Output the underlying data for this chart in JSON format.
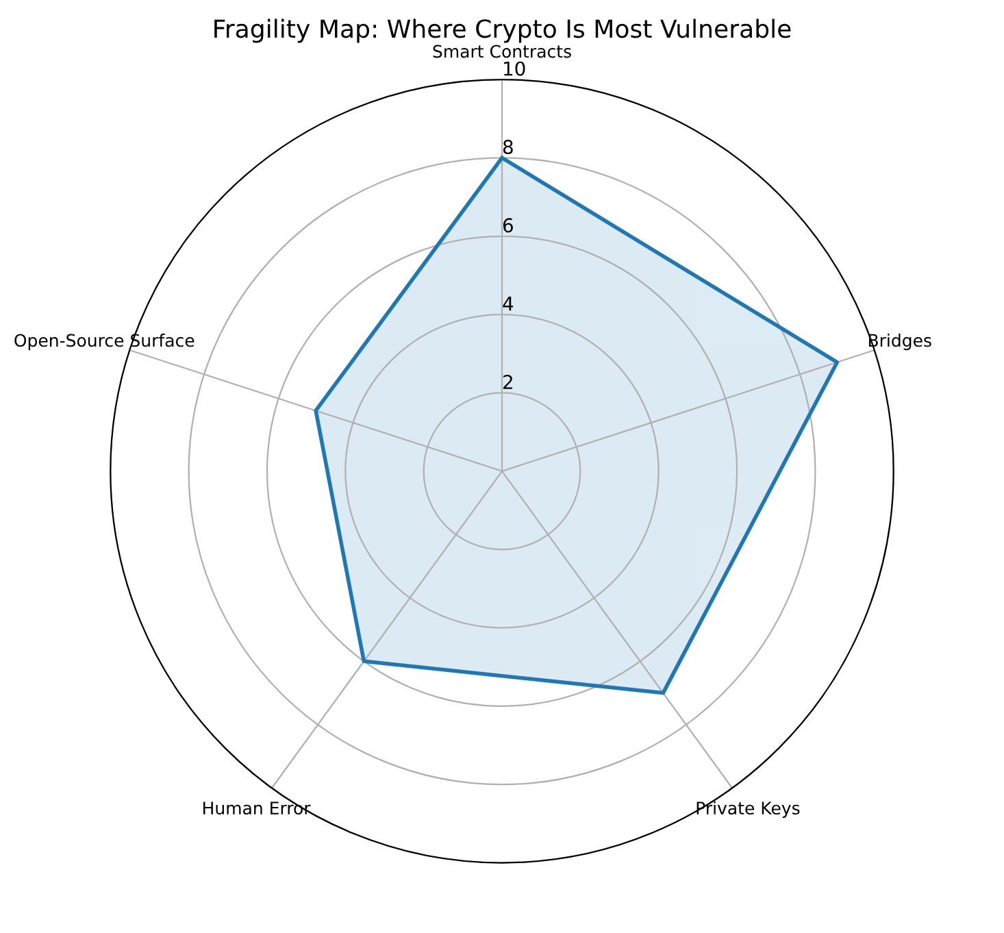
{
  "chart_data": {
    "type": "radar",
    "title": "Fragility Map: Where Crypto Is Most Vulnerable",
    "categories": [
      "Smart Contracts",
      "Bridges",
      "Private Keys",
      "Human Error",
      "Open-Source Surface"
    ],
    "series": [
      {
        "color": "#1f77b4",
        "values": [
          8,
          9,
          7,
          6,
          5
        ]
      }
    ],
    "ylim": [
      0,
      10
    ],
    "yticks": [
      2,
      4,
      6,
      8,
      10
    ],
    "grid": true
  }
}
